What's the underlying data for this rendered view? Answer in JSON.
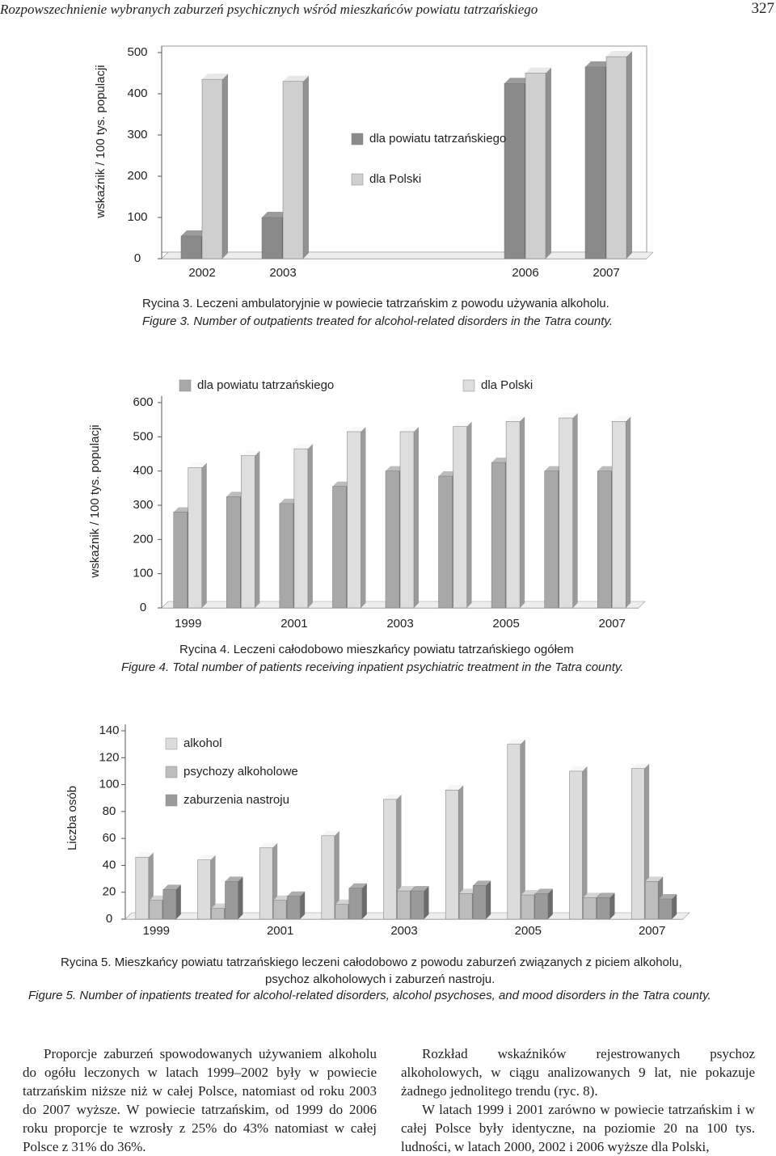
{
  "header": {
    "title": "Rozpowszechnienie wybranych zaburzeń psychicznych wśród mieszkańców powiatu tatrzańskiego",
    "page": "327"
  },
  "chart_data": [
    {
      "type": "bar",
      "title": "Rycina 3. Leczeni ambulatoryjnie w powiecie tatrzańskim z powodu używania alkoholu.",
      "subtitle": "Figure 3. Number of outpatients treated for alcohol-related disorders in the Tatra county.",
      "y_label": "wskaźnik / 100 tys. populacji",
      "categories": [
        "2002",
        "2003",
        null,
        null,
        "2006",
        "2007"
      ],
      "series": [
        {
          "name": "dla powiatu tatrzańskiego",
          "color": "#8a8a8a",
          "values": [
            55,
            100,
            null,
            null,
            425,
            465
          ]
        },
        {
          "name": "dla Polski",
          "color": "#cfcfcf",
          "values": [
            435,
            430,
            null,
            null,
            450,
            490
          ]
        }
      ],
      "ylim": [
        0,
        500
      ],
      "yticks": [
        0,
        100,
        200,
        300,
        400,
        500
      ],
      "grid": false,
      "legend": "center"
    },
    {
      "type": "bar",
      "title": "Rycina 4. Leczeni całodobowo mieszkańcy powiatu tatrzańskiego ogółem",
      "subtitle": "Figure 4. Total number of patients receiving inpatient psychiatric treatment in the Tatra county.",
      "y_label": "wskaźnik / 100 tys. populacji",
      "categories": [
        "1999",
        null,
        "2001",
        null,
        "2003",
        null,
        "2005",
        null,
        "2007"
      ],
      "series": [
        {
          "name": "dla powiatu tatrzańskiego",
          "color": "#a8a8a8",
          "values": [
            280,
            325,
            305,
            355,
            400,
            385,
            425,
            400,
            400
          ]
        },
        {
          "name": "dla Polski",
          "color": "#dedede",
          "values": [
            410,
            445,
            465,
            515,
            515,
            530,
            545,
            555,
            545
          ]
        }
      ],
      "ylim": [
        0,
        600
      ],
      "yticks": [
        0,
        100,
        200,
        300,
        400,
        500,
        600
      ],
      "grid": false,
      "legend": "top"
    },
    {
      "type": "bar",
      "title": [
        "Rycina 5. Mieszkańcy powiatu tatrzańskiego leczeni całodobowo z powodu zaburzeń związanych z piciem alkoholu,",
        "psychoz alkoholowych i zaburzeń nastroju."
      ],
      "subtitle": "Figure 5. Number of inpatients treated for alcohol-related disorders, alcohol psychoses, and mood disorders in the Tatra county.",
      "y_label": "Liczba osób",
      "categories": [
        "1999",
        null,
        "2001",
        null,
        "2003",
        null,
        "2005",
        null,
        "2007"
      ],
      "series": [
        {
          "name": "alkohol",
          "color": "#dcdcdc",
          "values": [
            46,
            44,
            53,
            62,
            89,
            96,
            130,
            110,
            112
          ]
        },
        {
          "name": "psychozy alkoholowe",
          "color": "#bdbdbd",
          "values": [
            14,
            8,
            14,
            11,
            21,
            19,
            18,
            16,
            28
          ]
        },
        {
          "name": "zaburzenia nastroju",
          "color": "#9a9a9a",
          "values": [
            22,
            28,
            17,
            23,
            21,
            25,
            19,
            16,
            15
          ]
        }
      ],
      "ylim": [
        0,
        140
      ],
      "yticks": [
        0,
        20,
        40,
        60,
        80,
        100,
        120,
        140
      ],
      "grid": false,
      "legend": "top-left"
    }
  ],
  "body": {
    "left": [
      "Proporcje zaburzeń spowodowanych używaniem alkoholu do ogółu leczonych w latach 1999–2002 były w powiecie tatrzańskim niższe niż w całej Polsce, natomiast od roku 2003 do 2007 wyższe. W powiecie tatrzańskim, od 1999 do 2006 roku proporcje te wzrosły z 25% do 43% natomiast w całej Polsce z 31% do 36%."
    ],
    "right": [
      "Rozkład wskaźników rejestrowanych psychoz alkoholowych, w ciągu analizowanych 9 lat, nie pokazuje żadnego jednolitego trendu (ryc. 8).",
      "W latach 1999 i 2001 zarówno w powiecie tatrzańskim i w całej Polsce były identyczne, na poziomie 20 na 100 tys. ludności, w latach 2000, 2002 i 2006 wyższe dla Polski,"
    ]
  }
}
